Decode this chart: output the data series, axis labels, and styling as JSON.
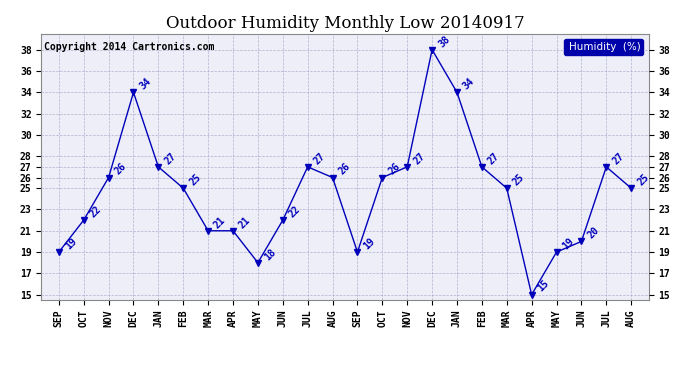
{
  "title": "Outdoor Humidity Monthly Low 20140917",
  "copyright": "Copyright 2014 Cartronics.com",
  "legend_label": "Humidity  (%)",
  "months": [
    "SEP",
    "OCT",
    "NOV",
    "DEC",
    "JAN",
    "FEB",
    "MAR",
    "APR",
    "MAY",
    "JUN",
    "JUL",
    "AUG",
    "SEP",
    "OCT",
    "NOV",
    "DEC",
    "JAN",
    "FEB",
    "MAR",
    "APR",
    "MAY",
    "JUN",
    "JUL",
    "AUG"
  ],
  "values": [
    19,
    22,
    26,
    34,
    27,
    25,
    21,
    21,
    18,
    22,
    27,
    26,
    19,
    26,
    27,
    38,
    34,
    27,
    25,
    15,
    19,
    20,
    27,
    25
  ],
  "line_color": "#0000bb",
  "marker": "v",
  "ylim": [
    14.5,
    39.5
  ],
  "yticks_left": [
    15,
    17,
    19,
    21,
    23,
    25,
    26,
    27,
    28,
    30,
    32,
    34,
    36,
    38
  ],
  "yticks_right": [
    15,
    17,
    19,
    21,
    23,
    25,
    26,
    27,
    28,
    30,
    32,
    34,
    36,
    38
  ],
  "bg_color": "#ffffff",
  "plot_bg": "#eeeef8",
  "title_fontsize": 12,
  "label_fontsize": 7,
  "annot_fontsize": 7,
  "copyright_fontsize": 7,
  "legend_bg": "#0000aa",
  "legend_fg": "#ffffff"
}
